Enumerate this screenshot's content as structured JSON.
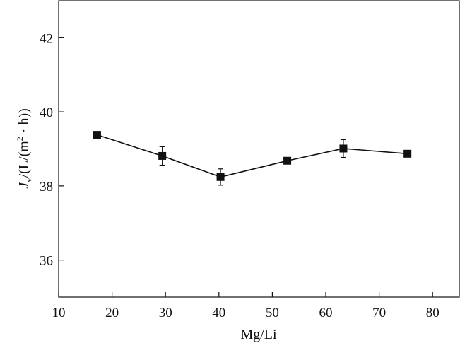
{
  "chart_data": {
    "type": "line",
    "xlabel": "Mg/Li",
    "ylabel_parts": {
      "symbol": "J",
      "subscript": "v",
      "rest_before_sup": "/(L/(m",
      "superscript": "2",
      "rest_after_sup": " · h))"
    },
    "xlim": [
      10,
      85
    ],
    "ylim": [
      35,
      43
    ],
    "x_ticks": [
      10,
      20,
      30,
      40,
      50,
      60,
      70,
      80
    ],
    "y_ticks": [
      36,
      38,
      40,
      42
    ],
    "grid": false,
    "legend": "none",
    "series": [
      {
        "marker": "square",
        "color": "#111111",
        "x": [
          17.2,
          29.4,
          40.3,
          52.8,
          63.3,
          75.3
        ],
        "y": [
          39.38,
          38.81,
          38.24,
          38.68,
          39.01,
          38.87
        ],
        "y_error": [
          0.05,
          0.25,
          0.22,
          0.07,
          0.24,
          0.05
        ]
      }
    ]
  }
}
